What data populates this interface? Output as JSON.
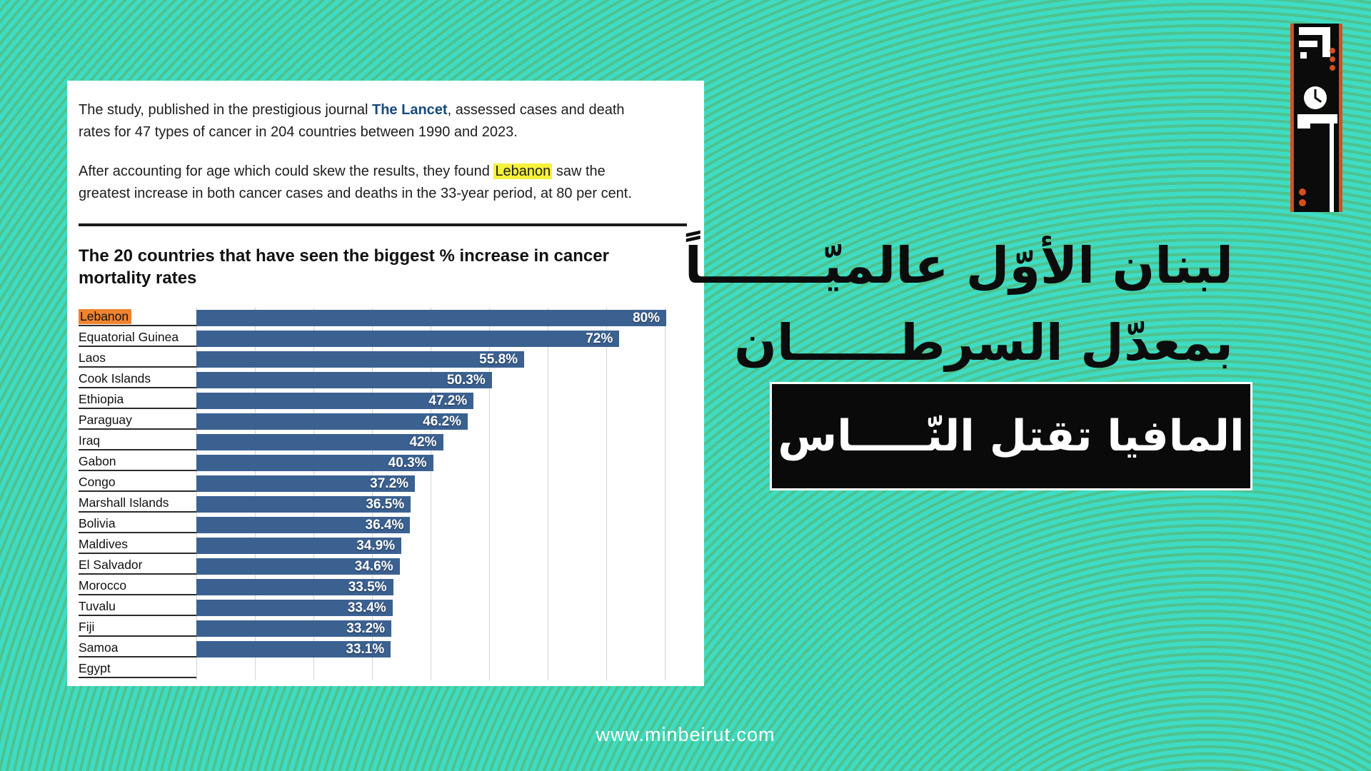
{
  "article": {
    "p1": {
      "pre": "The study, published in the prestigious journal ",
      "link": "The Lancet",
      "post": ", assessed cases and death rates for 47 types of cancer in 204 countries between 1990 and 2023."
    },
    "p2": {
      "pre": "After accounting for age which could skew the results, they found ",
      "mark": "Lebanon",
      "post": " saw the greatest increase in both cancer cases and deaths in the 33-year period, at 80 per cent."
    }
  },
  "chart_data": {
    "type": "bar",
    "title": "The 20 countries that have seen the biggest % increase in cancer mortality rates",
    "orientation": "horizontal",
    "categories": [
      "Lebanon",
      "Equatorial Guinea",
      "Laos",
      "Cook Islands",
      "Ethiopia",
      "Paraguay",
      "Iraq",
      "Gabon",
      "Congo",
      "Marshall Islands",
      "Bolivia",
      "Maldives",
      "El Salvador",
      "Morocco",
      "Tuvalu",
      "Fiji",
      "Samoa",
      "Egypt"
    ],
    "values": [
      80,
      72,
      55.8,
      50.3,
      47.2,
      46.2,
      42,
      40.3,
      37.2,
      36.5,
      36.4,
      34.9,
      34.6,
      33.5,
      33.4,
      33.2,
      33.1,
      null
    ],
    "value_labels": [
      "80%",
      "72%",
      "55.8%",
      "50.3%",
      "47.2%",
      "46.2%",
      "42%",
      "40.3%",
      "37.2%",
      "36.5%",
      "36.4%",
      "34.9%",
      "34.6%",
      "33.5%",
      "33.4%",
      "33.2%",
      "33.1%",
      ""
    ],
    "highlight_category": "Lebanon",
    "xlim": [
      0,
      84
    ],
    "gridline_step_percent": 10,
    "grid": true,
    "legend": "none",
    "bar_color": "#3B6191",
    "highlight_label_color": "#F0832F",
    "note": "Last row (Egypt) is cut off at the bottom edge of the card"
  },
  "headline": {
    "line1": "لبنان الأوّل عالميّـــــــاً",
    "line2": "بمعدّل السرطــــــان",
    "banner": "المافيا تقتل النّـــــاس"
  },
  "logo": {
    "name": "Min Beirut vertical logo"
  },
  "footer": {
    "url": "www.minbeirut.com"
  },
  "colors": {
    "background_turquoise": "#3EDCC4",
    "background_stripe_green": "#4EC28E",
    "bar_blue": "#3B6191",
    "lebanon_highlight_orange": "#F0832F",
    "lancet_link_navy": "#164A7C",
    "text_highlight_yellow": "#F6F13B",
    "logo_accent_orange": "#D34F1D",
    "banner_black": "#0A0A0A"
  }
}
